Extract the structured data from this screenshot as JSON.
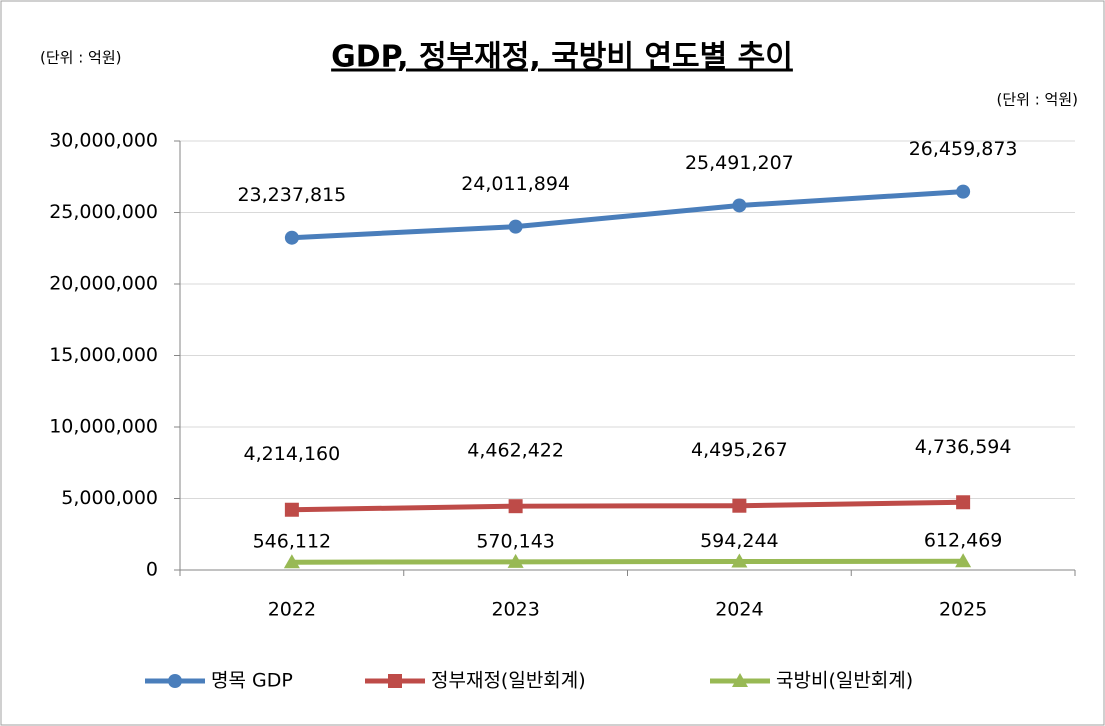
{
  "chart_data": {
    "type": "line",
    "title": "GDP, 정부재정, 국방비 연도별 추이",
    "unit_labels": [
      "(단위 : 억원)",
      "(단위 : 억원)"
    ],
    "categories": [
      "2022",
      "2023",
      "2024",
      "2025"
    ],
    "series": [
      {
        "name": "명목 GDP",
        "color": "#4a7ebb",
        "marker": "circle",
        "values": [
          23237815,
          24011894,
          25491207,
          26459873
        ],
        "value_labels": [
          "23,237,815",
          "24,011,894",
          "25,491,207",
          "26,459,873"
        ]
      },
      {
        "name": "정부재정(일반회계)",
        "color": "#be4b48",
        "marker": "square",
        "values": [
          4214160,
          4462422,
          4495267,
          4736594
        ],
        "value_labels": [
          "4,214,160",
          "4,462,422",
          "4,495,267",
          "4,736,594"
        ]
      },
      {
        "name": "국방비(일반회계)",
        "color": "#98b954",
        "marker": "triangle",
        "values": [
          546112,
          570143,
          594244,
          612469
        ],
        "value_labels": [
          "546,112",
          "570,143",
          "594,244",
          "612,469"
        ]
      }
    ],
    "ylim": [
      0,
      30000000
    ],
    "yticks": [
      0,
      {
        "value": 5000000,
        "label": "5,000,000"
      },
      {
        "value": 10000000,
        "label": "10,000,000"
      },
      {
        "value": 15000000,
        "label": "15,000,000"
      },
      {
        "value": 20000000,
        "label": "20,000,000"
      },
      {
        "value": 25000000,
        "label": "25,000,000"
      },
      {
        "value": 30000000,
        "label": "30,000,000"
      }
    ],
    "grid": true,
    "legend": "bottom"
  }
}
